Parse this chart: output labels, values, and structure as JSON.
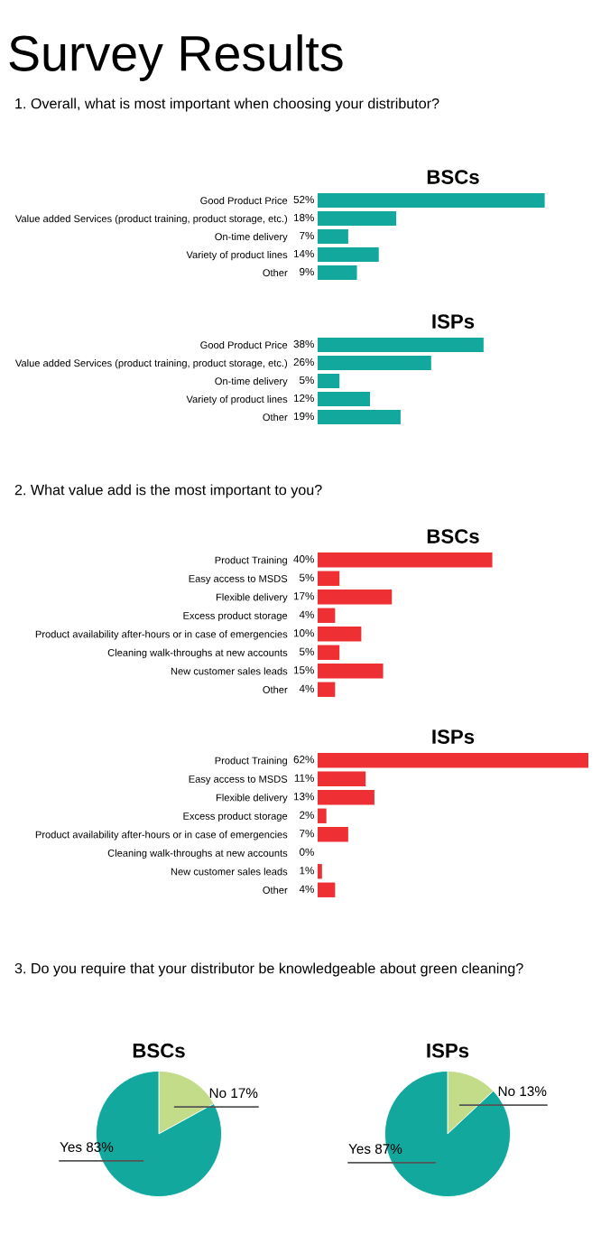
{
  "chart_data": [
    {
      "type": "bar",
      "orientation": "horizontal",
      "title": "BSCs",
      "subtitle": "1. Overall, what is most important when choosing your distributor?",
      "annotations": [
        "Survey Results"
      ],
      "categories": [
        "Good Product Price",
        "Value added Services (product training, product storage, etc.)",
        "On-time delivery",
        "Variety of product lines",
        "Other"
      ],
      "values": [
        52,
        18,
        7,
        14,
        9
      ],
      "value_labels": [
        "52%",
        "18%",
        "7%",
        "14%",
        "9%"
      ],
      "color": "#12a89d"
    },
    {
      "type": "bar",
      "orientation": "horizontal",
      "title": "ISPs",
      "categories": [
        "Good Product Price",
        "Value added Services (product training, product storage, etc.)",
        "On-time delivery",
        "Variety of product lines",
        "Other"
      ],
      "values": [
        38,
        26,
        5,
        12,
        19
      ],
      "value_labels": [
        "38%",
        "26%",
        "5%",
        "12%",
        "19%"
      ],
      "color": "#12a89d"
    },
    {
      "type": "bar",
      "orientation": "horizontal",
      "title": "BSCs",
      "subtitle": "2. What value add is the most important to you?",
      "categories": [
        "Product Training",
        "Easy access to MSDS",
        "Flexible delivery",
        "Excess product storage",
        "Product availability after-hours or in case of emergencies",
        "Cleaning walk-throughs at new accounts",
        "New customer sales leads",
        "Other"
      ],
      "values": [
        40,
        5,
        17,
        4,
        10,
        5,
        15,
        4
      ],
      "value_labels": [
        "40%",
        "5%",
        "17%",
        "4%",
        "10%",
        "5%",
        "15%",
        "4%"
      ],
      "color": "#ee3035"
    },
    {
      "type": "bar",
      "orientation": "horizontal",
      "title": "ISPs",
      "categories": [
        "Product Training",
        "Easy access to MSDS",
        "Flexible delivery",
        "Excess product storage",
        "Product availability after-hours or in case of emergencies",
        "Cleaning walk-throughs at new accounts",
        "New customer sales leads",
        "Other"
      ],
      "values": [
        62,
        11,
        13,
        2,
        7,
        0,
        1,
        4
      ],
      "value_labels": [
        "62%",
        "11%",
        "13%",
        "2%",
        "7%",
        "0%",
        "1%",
        "4%"
      ],
      "color": "#ee3035"
    },
    {
      "type": "pie",
      "title": "BSCs",
      "subtitle": "3. Do you require that your distributor be knowledgeable about green cleaning?",
      "categories": [
        "No",
        "Yes"
      ],
      "values": [
        17,
        83
      ],
      "value_labels": [
        "17%",
        "83%"
      ],
      "colors": [
        "#c3dc8a",
        "#12a89d"
      ]
    },
    {
      "type": "pie",
      "title": "ISPs",
      "categories": [
        "No",
        "Yes"
      ],
      "values": [
        13,
        87
      ],
      "value_labels": [
        "13%",
        "87%"
      ],
      "colors": [
        "#c3dc8a",
        "#12a89d"
      ]
    }
  ]
}
